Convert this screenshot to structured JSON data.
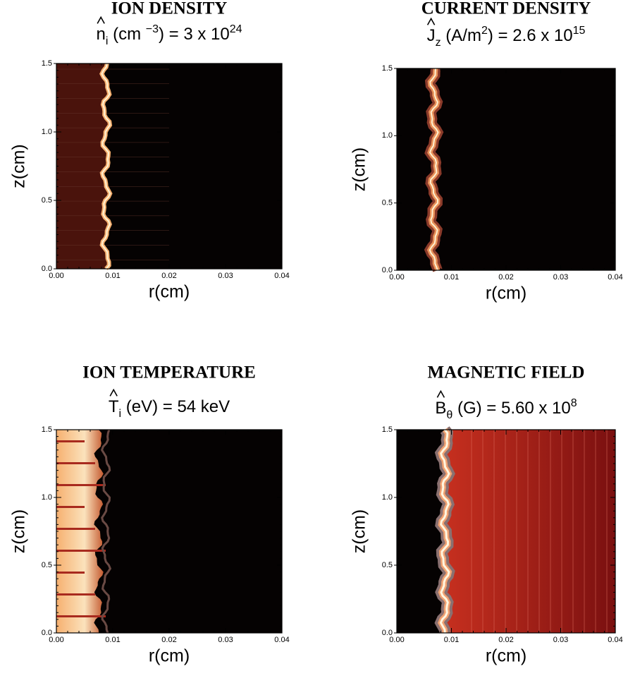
{
  "chart_data": [
    {
      "type": "contour",
      "title": "ION DENSITY",
      "subtitle": [
        "n",
        "i",
        " (cm ",
        "−3",
        ") = 3 x 10",
        "24"
      ],
      "x_label": "r(cm)",
      "y_label": "z(cm)",
      "xlim": [
        0,
        0.04
      ],
      "xticks": [
        {
          "value": 0,
          "label": "0.00"
        },
        0.01,
        0.02,
        0.03,
        0.04
      ],
      "ylim": [
        0,
        1.5
      ],
      "yticks": [
        {
          "value": 0,
          "label": "0.0"
        },
        0.5,
        {
          "value": 1,
          "label": "1.0"
        },
        1.5
      ]
    },
    {
      "type": "contour",
      "title": "CURRENT DENSITY",
      "subtitle": [
        "J",
        "z",
        " (A/m",
        "2",
        ") = 2.6 x 10",
        "15"
      ],
      "x_label": "r(cm)",
      "y_label": "z(cm)",
      "xlim": [
        0,
        0.04
      ],
      "xticks": [
        {
          "value": 0,
          "label": "0.00"
        },
        0.01,
        0.02,
        0.03,
        0.04
      ],
      "ylim": [
        0,
        1.5
      ],
      "yticks": [
        {
          "value": 0,
          "label": "0.0"
        },
        0.5,
        {
          "value": 1,
          "label": "1.0"
        },
        1.5
      ]
    },
    {
      "type": "contour",
      "title": "ION TEMPERATURE",
      "subtitle": [
        "T",
        "i",
        " (eV) = 54 keV"
      ],
      "x_label": "r(cm)",
      "y_label": "z(cm)",
      "xlim": [
        0,
        0.04
      ],
      "xticks": [
        {
          "value": 0,
          "label": "0.00"
        },
        0.01,
        0.02,
        0.03,
        0.04
      ],
      "ylim": [
        0,
        1.5
      ],
      "yticks": [
        {
          "value": 0,
          "label": "0.0"
        },
        0.5,
        {
          "value": 1,
          "label": "1.0"
        },
        1.5
      ]
    },
    {
      "type": "contour",
      "title": "MAGNETIC FIELD",
      "subtitle": [
        "B",
        "θ",
        " (G) = 5.60 x 10",
        "8"
      ],
      "x_label": "r(cm)",
      "y_label": "z(cm)",
      "xlim": [
        0,
        0.04
      ],
      "xticks": [
        {
          "value": 0,
          "label": "0.00"
        },
        0.01,
        0.02,
        0.03,
        0.04
      ],
      "ylim": [
        0,
        1.5
      ],
      "yticks": [
        {
          "value": 0,
          "label": "0.0"
        },
        0.5,
        {
          "value": 1,
          "label": "1.0"
        },
        1.5
      ]
    }
  ]
}
